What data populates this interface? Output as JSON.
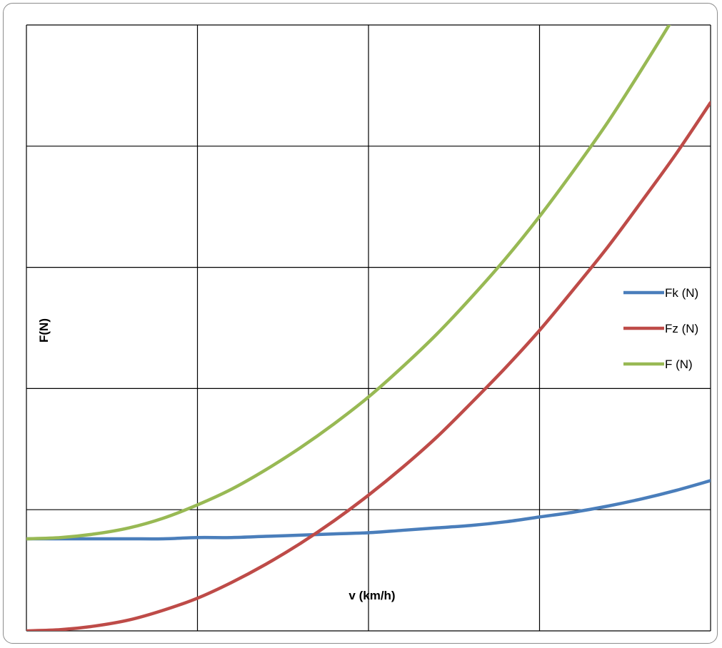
{
  "chart_data": {
    "type": "line",
    "xlabel": "v (km/h)",
    "ylabel": "F(N)",
    "xlim": [
      0,
      4
    ],
    "ylim": [
      0,
      5
    ],
    "grid": true,
    "legend_position": "right",
    "series": [
      {
        "name": "Fk (N)",
        "color": "#4a7ebb",
        "x": [
          0,
          0.2,
          0.4,
          0.6,
          0.8,
          1.0,
          1.2,
          1.4,
          1.6,
          1.8,
          2.0,
          2.2,
          2.4,
          2.6,
          2.8,
          3.0,
          3.2,
          3.4,
          3.6,
          3.8,
          4.0
        ],
        "y": [
          0.76,
          0.76,
          0.76,
          0.76,
          0.76,
          0.77,
          0.77,
          0.78,
          0.79,
          0.8,
          0.81,
          0.83,
          0.85,
          0.87,
          0.9,
          0.94,
          0.98,
          1.03,
          1.09,
          1.16,
          1.24
        ]
      },
      {
        "name": "Fz (N)",
        "color": "#be4b48",
        "x": [
          0,
          0.2,
          0.4,
          0.6,
          0.8,
          1.0,
          1.2,
          1.4,
          1.6,
          1.8,
          2.0,
          2.2,
          2.4,
          2.6,
          2.8,
          3.0,
          3.2,
          3.4,
          3.6,
          3.8,
          4.0
        ],
        "y": [
          0.0,
          0.01,
          0.04,
          0.09,
          0.17,
          0.27,
          0.4,
          0.55,
          0.72,
          0.91,
          1.12,
          1.35,
          1.6,
          1.88,
          2.17,
          2.48,
          2.82,
          3.17,
          3.55,
          3.94,
          4.36
        ]
      },
      {
        "name": "F (N)",
        "color": "#98b954",
        "x": [
          0,
          0.2,
          0.4,
          0.6,
          0.8,
          1.0,
          1.2,
          1.4,
          1.6,
          1.8,
          2.0,
          2.2,
          2.4,
          2.6,
          2.8,
          3.0,
          3.2,
          3.4,
          3.6,
          3.8,
          4.0
        ],
        "y": [
          0.76,
          0.77,
          0.8,
          0.85,
          0.93,
          1.04,
          1.17,
          1.33,
          1.51,
          1.71,
          1.93,
          2.18,
          2.45,
          2.75,
          3.07,
          3.42,
          3.8,
          4.2,
          4.64,
          5.1,
          5.6
        ]
      }
    ]
  }
}
